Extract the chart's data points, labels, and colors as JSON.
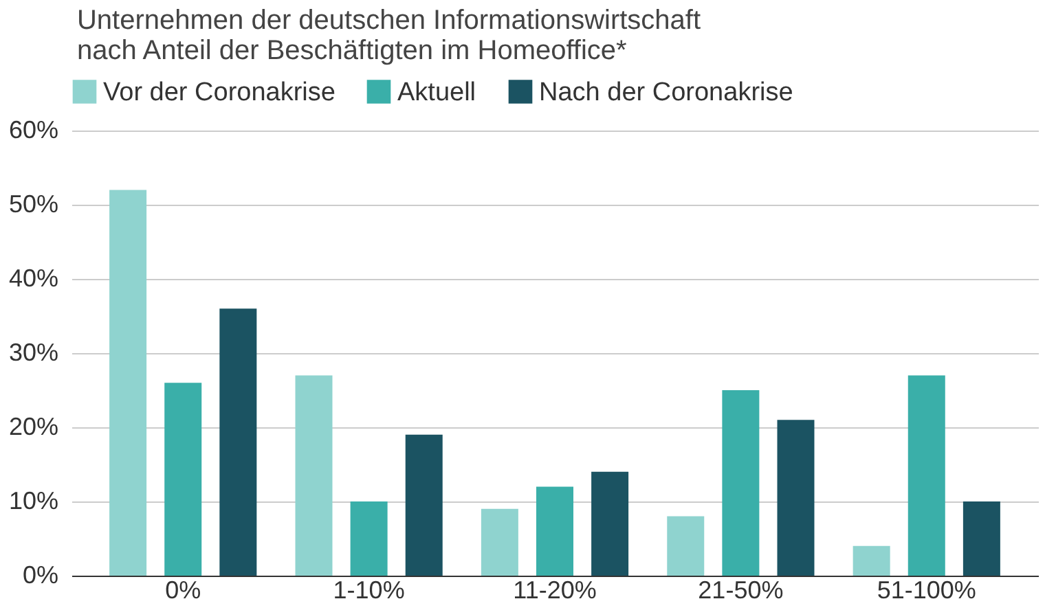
{
  "chart_data": {
    "type": "bar",
    "title": "Unternehmen der deutschen Informationswirtschaft nach Anteil der Beschäftigten im Homeoffice*",
    "categories": [
      "0%",
      "1-10%",
      "11-20%",
      "21-50%",
      "51-100%"
    ],
    "series": [
      {
        "name": "Vor der Coronakrise",
        "color": "#8fd3cf",
        "values": [
          52,
          27,
          9,
          8,
          4
        ]
      },
      {
        "name": "Aktuell",
        "color": "#3aafa9",
        "values": [
          26,
          10,
          12,
          25,
          27
        ]
      },
      {
        "name": "Nach der Coronakrise",
        "color": "#1b5362",
        "values": [
          36,
          19,
          14,
          21,
          10
        ]
      }
    ],
    "ylim": [
      0,
      60
    ],
    "yticks": [
      {
        "value": 0,
        "label": "0%"
      },
      {
        "value": 10,
        "label": "10%"
      },
      {
        "value": 20,
        "label": "20%"
      },
      {
        "value": 30,
        "label": "30%"
      },
      {
        "value": 40,
        "label": "40%"
      },
      {
        "value": 50,
        "label": "50%"
      },
      {
        "value": 60,
        "label": "60%"
      }
    ],
    "grid": "y",
    "legend": "top left"
  }
}
